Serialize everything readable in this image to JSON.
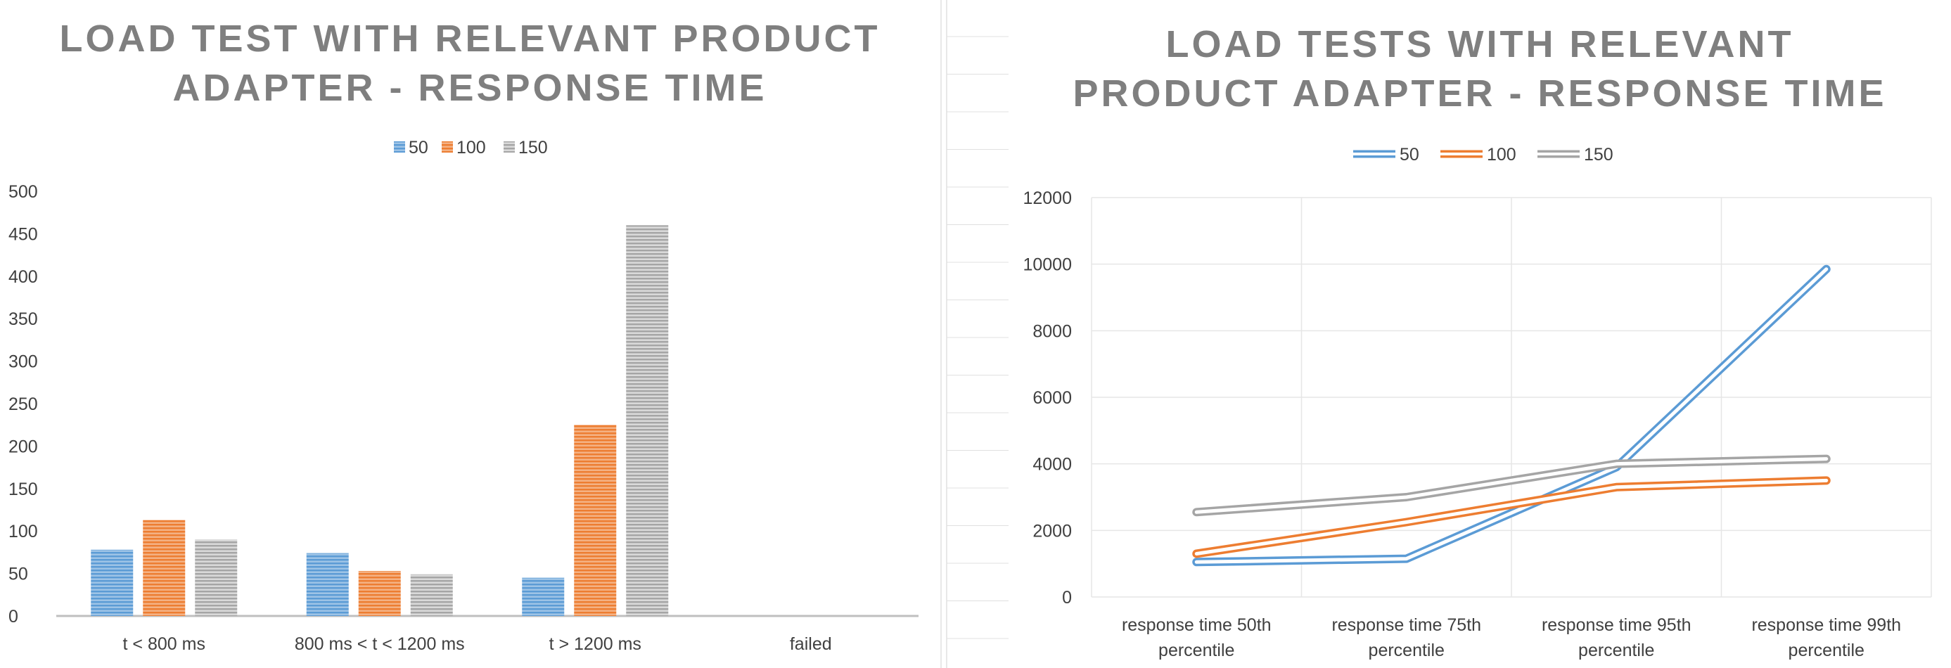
{
  "chart_data": [
    {
      "type": "bar",
      "title_lines": [
        "LOAD TEST WITH RELEVANT PRODUCT",
        "ADAPTER - RESPONSE TIME"
      ],
      "categories": [
        "t < 800 ms",
        "800 ms < t < 1200 ms",
        "t > 1200 ms",
        "failed"
      ],
      "series": [
        {
          "name": "50",
          "values": [
            78,
            74,
            45,
            0
          ],
          "color": "#5b9bd5"
        },
        {
          "name": "100",
          "values": [
            113,
            53,
            225,
            0
          ],
          "color": "#ed7d31"
        },
        {
          "name": "150",
          "values": [
            90,
            49,
            460,
            0
          ],
          "color": "#a5a5a5"
        }
      ],
      "ylim": [
        0,
        500
      ],
      "yticks": [
        "0",
        "50",
        "100",
        "150",
        "200",
        "250",
        "300",
        "350",
        "400",
        "450",
        "500"
      ],
      "grid": false,
      "legend_position": "top"
    },
    {
      "type": "line",
      "title_lines": [
        "LOAD TESTS WITH RELEVANT",
        "PRODUCT ADAPTER - RESPONSE TIME"
      ],
      "categories": [
        [
          "response time 50th",
          "percentile"
        ],
        [
          "response time 75th",
          "percentile"
        ],
        [
          "response time 95th",
          "percentile"
        ],
        [
          "response time 99th",
          "percentile"
        ]
      ],
      "series": [
        {
          "name": "50",
          "values": [
            1050,
            1150,
            3900,
            9850
          ],
          "color": "#5b9bd5"
        },
        {
          "name": "100",
          "values": [
            1300,
            2250,
            3300,
            3500
          ],
          "color": "#ed7d31"
        },
        {
          "name": "150",
          "values": [
            2550,
            3000,
            4000,
            4150
          ],
          "color": "#a5a5a5"
        }
      ],
      "ylim": [
        0,
        12000
      ],
      "yticks": [
        "0",
        "2000",
        "4000",
        "6000",
        "8000",
        "10000",
        "12000"
      ],
      "grid": true,
      "legend_position": "top"
    }
  ]
}
